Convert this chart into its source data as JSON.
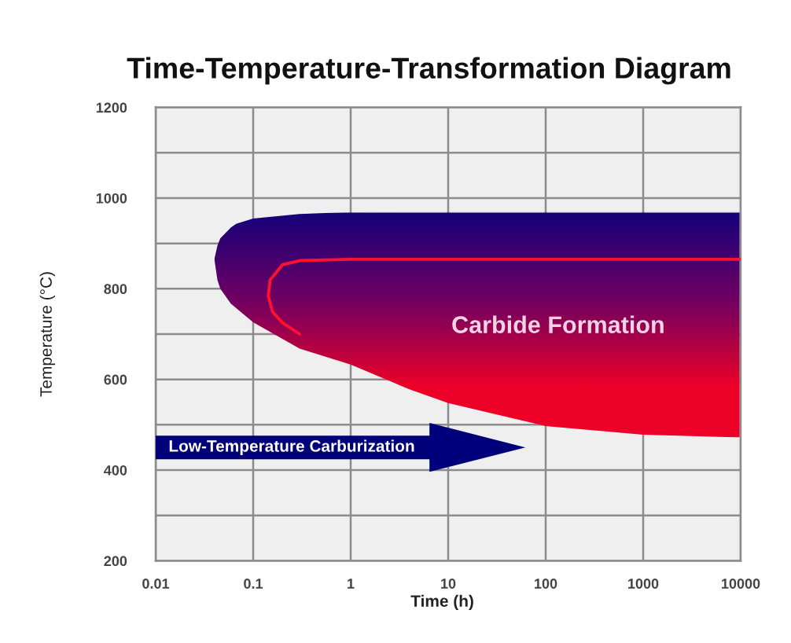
{
  "chart_data": {
    "type": "area",
    "title": "Time-Temperature-Transformation Diagram",
    "xlabel": "Time (h)",
    "ylabel": "Temperature (°C)",
    "log": "x",
    "xlim": [
      0.01,
      10000
    ],
    "xticks": [
      0.01,
      0.1,
      1,
      10,
      100,
      1000,
      10000
    ],
    "ylim": [
      200,
      1200
    ],
    "yticks": [
      200,
      {
        "value": 300,
        "label": null
      },
      400,
      {
        "value": 500,
        "label": null
      },
      600,
      {
        "value": 700,
        "label": null
      },
      800,
      {
        "value": 900,
        "label": null
      },
      1000,
      {
        "value": 1100,
        "label": null
      },
      1200
    ],
    "grid": true,
    "series": [
      {
        "name": "Carbide Formation",
        "color": "#14007a",
        "x": [
          10000,
          1000,
          100,
          10,
          4,
          1,
          0.3,
          0.1,
          0.067,
          0.059,
          0.046,
          0.043,
          0.04,
          0.043,
          0.046,
          0.059,
          0.067,
          0.1,
          0.3,
          1,
          4,
          10,
          100,
          1000,
          10000
        ],
        "values": [
          970,
          970,
          970,
          970,
          970,
          969,
          965,
          955,
          943,
          935,
          911,
          895,
          865,
          819,
          800,
          767,
          757,
          726,
          668,
          633,
          578,
          548,
          497,
          478,
          472
        ]
      },
      {
        "type": "line",
        "color": "#ff1030",
        "x": [
          10000,
          1,
          0.3,
          0.2,
          0.149,
          0.143,
          0.158,
          0.2,
          0.3
        ],
        "values": [
          865,
          865,
          862,
          853,
          819,
          784,
          749,
          725,
          700
        ]
      }
    ],
    "annotations": [
      "Low-Temperature Carburization"
    ]
  }
}
